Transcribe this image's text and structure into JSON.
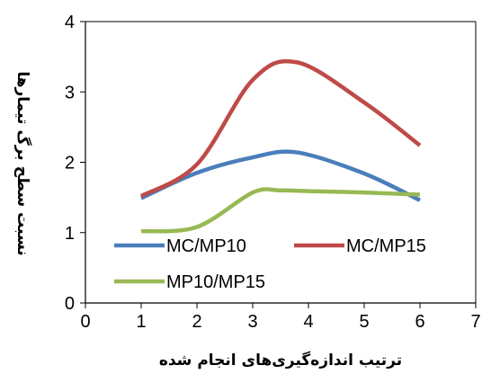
{
  "chart_data": {
    "type": "line",
    "xlabel": "ترتیب اندازه‌گیری‌های انجام شده",
    "ylabel": "نسبت سطح برگ تیمارها",
    "xlim": [
      0,
      7
    ],
    "ylim": [
      0,
      4
    ],
    "xticks": [
      "0",
      "1",
      "2",
      "3",
      "4",
      "5",
      "6",
      "7"
    ],
    "yticks": [
      "0",
      "1",
      "2",
      "3",
      "4"
    ],
    "grid": false,
    "legend_position": "bottom-inside",
    "series": [
      {
        "name": "MC/MP10",
        "color": "#4a7ebb",
        "x": [
          1,
          2,
          3,
          3.8,
          5,
          6
        ],
        "y": [
          1.49,
          1.85,
          2.07,
          2.14,
          1.84,
          1.46
        ]
      },
      {
        "name": "MC/MP15",
        "color": "#be4b48",
        "x": [
          1,
          2,
          3,
          3.8,
          5,
          6
        ],
        "y": [
          1.52,
          1.97,
          3.17,
          3.42,
          2.85,
          2.24
        ]
      },
      {
        "name": "MP10/MP15",
        "color": "#98b954",
        "x": [
          1,
          2,
          3,
          3.5,
          4,
          5,
          6
        ],
        "y": [
          1.02,
          1.08,
          1.57,
          1.6,
          1.59,
          1.57,
          1.54
        ]
      }
    ]
  }
}
